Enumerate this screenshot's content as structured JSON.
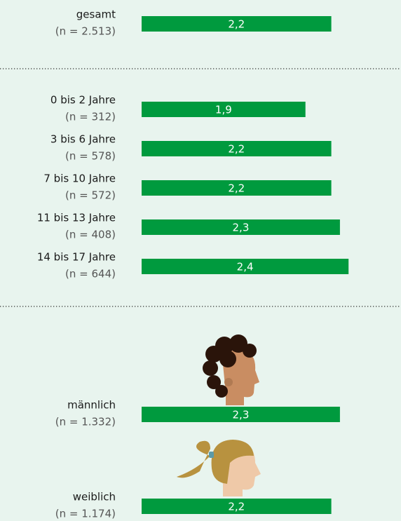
{
  "chart_data": {
    "type": "bar",
    "categories": [
      "gesamt",
      "0 bis 2 Jahre",
      "3 bis 6 Jahre",
      "7 bis 10 Jahre",
      "11 bis 13 Jahre",
      "14 bis 17 Jahre",
      "männlich",
      "weiblich"
    ],
    "sample_sizes": [
      "(n = 2.513)",
      "(n = 312)",
      "(n = 578)",
      "(n = 572)",
      "(n = 408)",
      "(n = 644)",
      "(n = 1.332)",
      "(n = 1.174)"
    ],
    "values": [
      2.2,
      1.9,
      2.2,
      2.2,
      2.3,
      2.4,
      2.3,
      2.2
    ],
    "value_labels": [
      "2,2",
      "1,9",
      "2,2",
      "2,2",
      "2,3",
      "2,4",
      "2,3",
      "2,2"
    ],
    "color": "#009a3e"
  }
}
